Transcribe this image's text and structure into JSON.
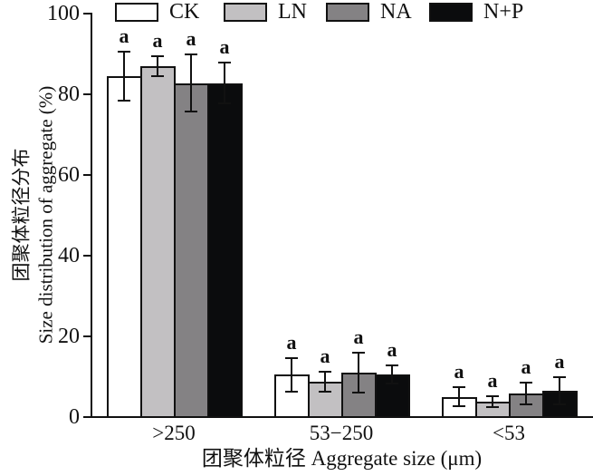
{
  "chart_data": {
    "type": "bar",
    "title": "",
    "categories": [
      ">250",
      "53−250",
      "<53"
    ],
    "series": [
      {
        "name": "CK",
        "color": "#ffffff",
        "values": [
          84.5,
          10.5,
          5.0
        ],
        "errors": [
          6.0,
          4.2,
          2.4
        ]
      },
      {
        "name": "LN",
        "color": "#c2c0c2",
        "values": [
          87.0,
          8.8,
          3.8
        ],
        "errors": [
          2.5,
          2.5,
          1.4
        ]
      },
      {
        "name": "NA",
        "color": "#848284",
        "values": [
          82.8,
          11.0,
          5.8
        ],
        "errors": [
          7.0,
          5.0,
          2.7
        ]
      },
      {
        "name": "N+P",
        "color": "#0b0c0d",
        "values": [
          82.8,
          10.5,
          6.5
        ],
        "errors": [
          5.0,
          2.2,
          3.3
        ]
      }
    ],
    "significance_labels": [
      [
        "a",
        "a",
        "a",
        "a"
      ],
      [
        "a",
        "a",
        "a",
        "a"
      ],
      [
        "a",
        "a",
        "a",
        "a"
      ]
    ],
    "xlabel": "团聚体粒径 Aggregate size (μm)",
    "ylabel_zh": "团聚体粒径分布",
    "ylabel_en": "Size distribution of aggregate (%)",
    "ylim": [
      0,
      100
    ],
    "yticks": [
      0,
      20,
      40,
      60,
      80,
      100
    ],
    "legend_position": "top",
    "grid": false,
    "bar_edge_color": "#111111",
    "error_bar_color": "#111111"
  }
}
